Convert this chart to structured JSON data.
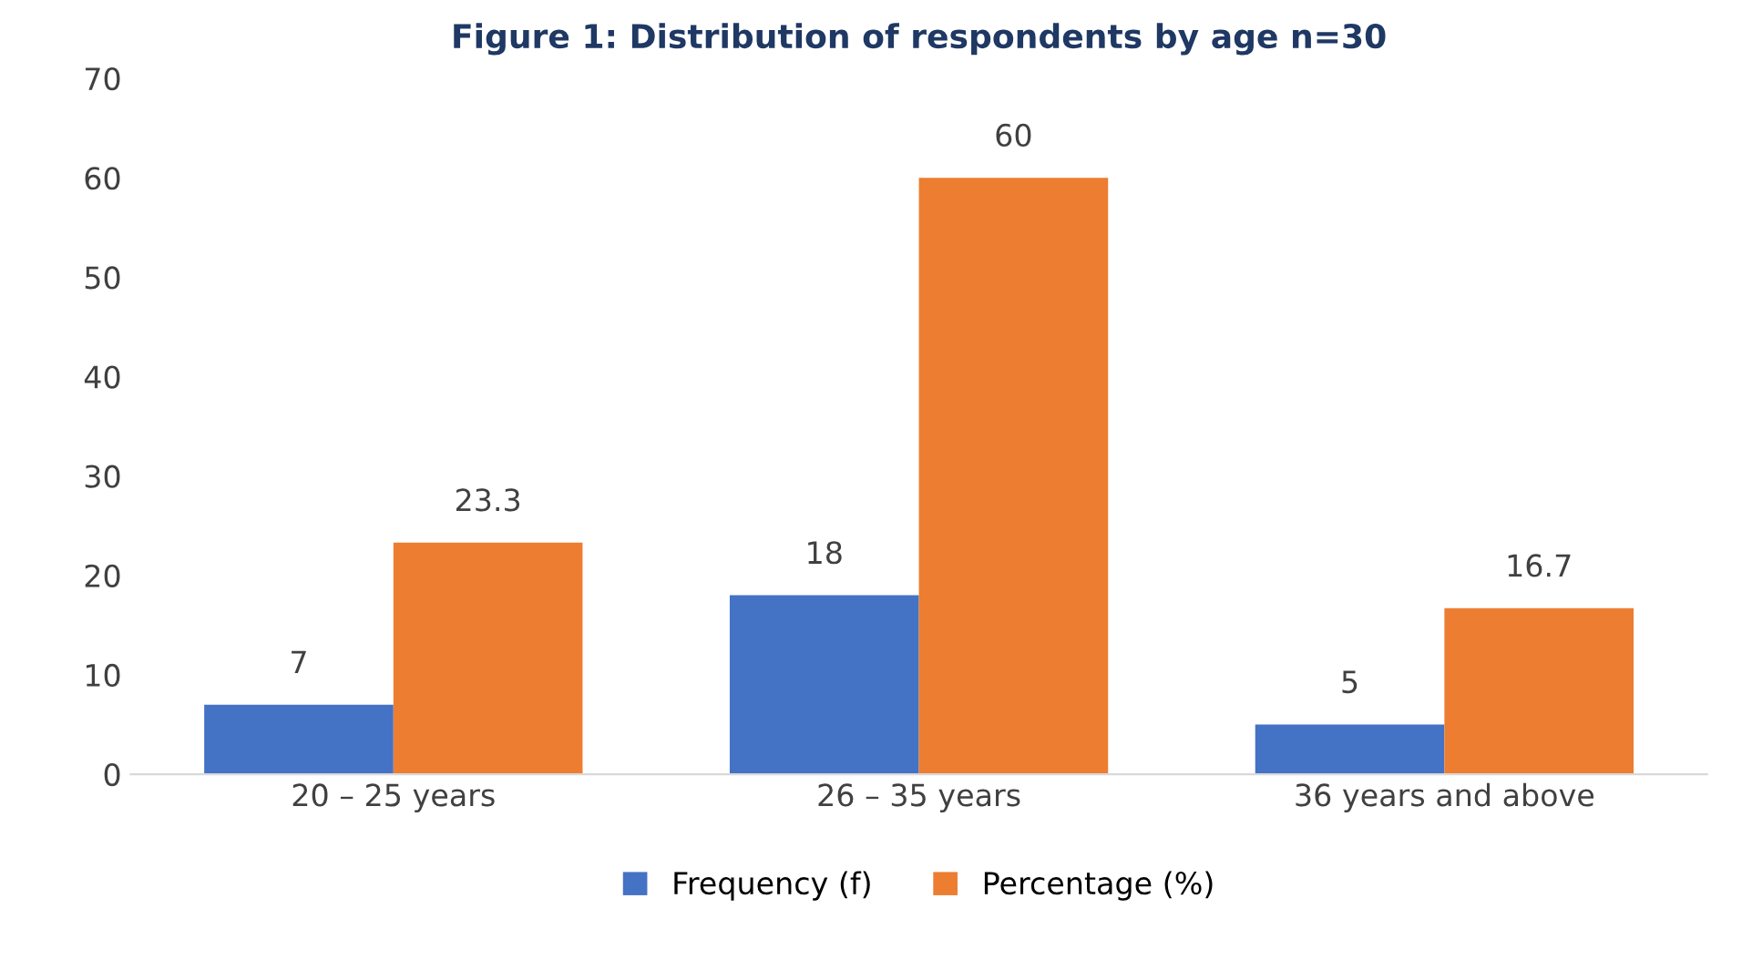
{
  "chart_data": {
    "type": "bar",
    "title": "Figure 1: Distribution of respondents by age n=30",
    "categories": [
      "20 – 25 years",
      "26 – 35 years",
      "36 years and above"
    ],
    "series": [
      {
        "name": "Frequency (f)",
        "color": "#4472c4",
        "values": [
          7,
          18,
          5
        ]
      },
      {
        "name": "Percentage (%)",
        "color": "#ed7d31",
        "values": [
          23.3,
          60,
          16.7
        ]
      }
    ],
    "ylim": [
      0,
      70
    ],
    "yticks": [
      0,
      10,
      20,
      30,
      40,
      50,
      60,
      70
    ],
    "grid": false,
    "legend": "bottom",
    "data_labels": true
  }
}
